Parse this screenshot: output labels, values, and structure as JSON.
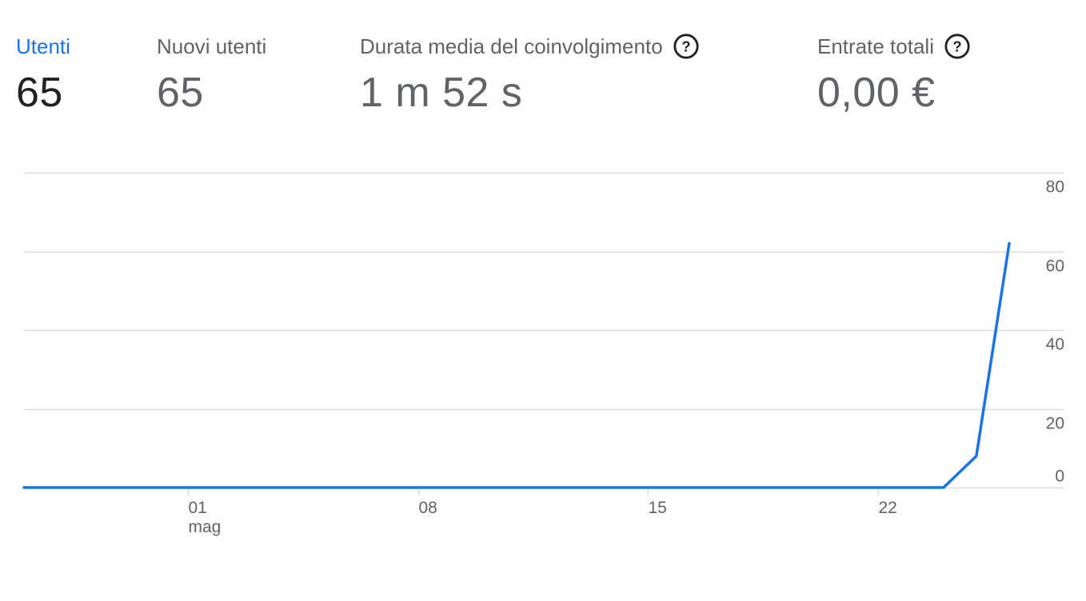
{
  "metrics": [
    {
      "label": "Utenti",
      "value": "65",
      "active": true,
      "help": false
    },
    {
      "label": "Nuovi utenti",
      "value": "65",
      "active": false,
      "help": false
    },
    {
      "label": "Durata media del coinvolgimento",
      "value": "1 m 52 s",
      "active": false,
      "help": true
    },
    {
      "label": "Entrate totali",
      "value": "0,00 €",
      "active": false,
      "help": true
    }
  ],
  "colors": {
    "line": "#1a73e8",
    "grid": "#dadce0",
    "text": "#5f6368",
    "active_tab": "#1a73e8"
  },
  "chart_data": {
    "type": "line",
    "series": [
      {
        "values": [
          {
            "x": "2023-04-26",
            "y": 0
          },
          {
            "x": "2023-04-27",
            "y": 0
          },
          {
            "x": "2023-04-28",
            "y": 0
          },
          {
            "x": "2023-04-29",
            "y": 0
          },
          {
            "x": "2023-04-30",
            "y": 0
          },
          {
            "x": "2023-05-01",
            "y": 0
          },
          {
            "x": "2023-05-02",
            "y": 0
          },
          {
            "x": "2023-05-03",
            "y": 0
          },
          {
            "x": "2023-05-04",
            "y": 0
          },
          {
            "x": "2023-05-05",
            "y": 0
          },
          {
            "x": "2023-05-06",
            "y": 0
          },
          {
            "x": "2023-05-07",
            "y": 0
          },
          {
            "x": "2023-05-08",
            "y": 0
          },
          {
            "x": "2023-05-09",
            "y": 0
          },
          {
            "x": "2023-05-10",
            "y": 0
          },
          {
            "x": "2023-05-11",
            "y": 0
          },
          {
            "x": "2023-05-12",
            "y": 0
          },
          {
            "x": "2023-05-13",
            "y": 0
          },
          {
            "x": "2023-05-14",
            "y": 0
          },
          {
            "x": "2023-05-15",
            "y": 0
          },
          {
            "x": "2023-05-16",
            "y": 0
          },
          {
            "x": "2023-05-17",
            "y": 0
          },
          {
            "x": "2023-05-18",
            "y": 0
          },
          {
            "x": "2023-05-19",
            "y": 0
          },
          {
            "x": "2023-05-20",
            "y": 0
          },
          {
            "x": "2023-05-21",
            "y": 0
          },
          {
            "x": "2023-05-22",
            "y": 0
          },
          {
            "x": "2023-05-23",
            "y": 0
          },
          {
            "x": "2023-05-24",
            "y": 0
          },
          {
            "x": "2023-05-25",
            "y": 8
          },
          {
            "x": "2023-05-26",
            "y": 62
          }
        ]
      }
    ],
    "x_ticks": [
      {
        "x": "2023-05-01",
        "label": "01",
        "sublabel": "mag"
      },
      {
        "x": "2023-05-08",
        "label": "08",
        "sublabel": ""
      },
      {
        "x": "2023-05-15",
        "label": "15",
        "sublabel": ""
      },
      {
        "x": "2023-05-22",
        "label": "22",
        "sublabel": ""
      }
    ],
    "y_ticks": [
      0,
      20,
      40,
      60,
      80
    ],
    "ylim": [
      0,
      80
    ],
    "xlim": [
      "2023-04-26",
      "2023-05-26"
    ],
    "grid": true,
    "y_axis_position": "right",
    "legend": "none"
  }
}
